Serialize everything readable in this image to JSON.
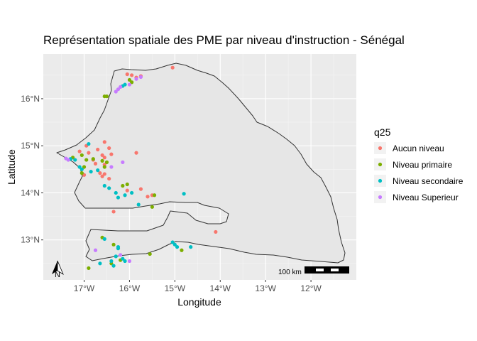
{
  "title": "Représentation spatiale des PME par niveau d'instruction - Sénégal",
  "axes": {
    "x_label": "Longitude",
    "y_label": "Latitude",
    "x_ticks": [
      "17°W",
      "16°W",
      "15°W",
      "14°W",
      "13°W",
      "12°W"
    ],
    "y_ticks": [
      "13°N",
      "14°N",
      "15°N",
      "16°N"
    ],
    "xlim": [
      -17.9,
      -11.0
    ],
    "ylim": [
      12.15,
      16.95
    ]
  },
  "legend": {
    "title": "q25",
    "placement": "right",
    "items": [
      {
        "label": "Aucun niveau",
        "color": "#F8766D"
      },
      {
        "label": "Niveau primaire",
        "color": "#7CAE00"
      },
      {
        "label": "Niveau secondaire",
        "color": "#00BFC4"
      },
      {
        "label": "Niveau Superieur",
        "color": "#C77CFF"
      }
    ]
  },
  "scale_bar": {
    "label": "100 km"
  },
  "north_arrow": {
    "label": "N"
  },
  "chart_data": {
    "type": "scatter",
    "title": "Représentation spatiale des PME par niveau d'instruction - Sénégal",
    "xlabel": "Longitude",
    "ylabel": "Latitude",
    "xlim": [
      -17.9,
      -11.0
    ],
    "ylim": [
      12.15,
      16.95
    ],
    "grid": true,
    "legend_placement": "right",
    "series": [
      {
        "name": "Aucun niveau",
        "color": "#F8766D",
        "points": [
          [
            -16.05,
            16.52
          ],
          [
            -15.95,
            16.5
          ],
          [
            -15.85,
            16.45
          ],
          [
            -15.75,
            16.48
          ],
          [
            -15.05,
            16.66
          ],
          [
            -16.55,
            15.08
          ],
          [
            -16.45,
            14.95
          ],
          [
            -16.6,
            14.8
          ],
          [
            -16.55,
            14.75
          ],
          [
            -16.4,
            14.82
          ],
          [
            -16.7,
            14.92
          ],
          [
            -16.95,
            15.0
          ],
          [
            -17.1,
            14.88
          ],
          [
            -16.9,
            14.85
          ],
          [
            -16.75,
            14.62
          ],
          [
            -16.55,
            14.6
          ],
          [
            -16.8,
            14.7
          ],
          [
            -16.65,
            14.42
          ],
          [
            -16.6,
            14.35
          ],
          [
            -16.45,
            14.3
          ],
          [
            -15.85,
            14.85
          ],
          [
            -15.75,
            14.08
          ],
          [
            -15.6,
            13.92
          ],
          [
            -15.5,
            13.95
          ],
          [
            -16.05,
            14.05
          ],
          [
            -16.35,
            13.6
          ],
          [
            -14.1,
            13.17
          ],
          [
            -17.0,
            14.38
          ],
          [
            -16.55,
            14.4
          ]
        ]
      },
      {
        "name": "Niveau primaire",
        "color": "#7CAE00",
        "points": [
          [
            -16.0,
            16.4
          ],
          [
            -15.95,
            16.35
          ],
          [
            -16.55,
            16.05
          ],
          [
            -16.5,
            16.05
          ],
          [
            -17.25,
            14.75
          ],
          [
            -17.05,
            14.8
          ],
          [
            -16.95,
            14.7
          ],
          [
            -17.0,
            14.55
          ],
          [
            -16.8,
            14.72
          ],
          [
            -16.6,
            14.68
          ],
          [
            -16.5,
            14.65
          ],
          [
            -16.55,
            14.55
          ],
          [
            -16.15,
            14.15
          ],
          [
            -16.05,
            14.18
          ],
          [
            -15.45,
            13.95
          ],
          [
            -15.5,
            13.7
          ],
          [
            -16.35,
            12.9
          ],
          [
            -16.2,
            12.57
          ],
          [
            -16.6,
            13.05
          ],
          [
            -15.55,
            12.7
          ],
          [
            -14.85,
            12.78
          ],
          [
            -16.9,
            12.4
          ],
          [
            -16.4,
            12.5
          ],
          [
            -17.05,
            14.42
          ]
        ]
      },
      {
        "name": "Niveau secondaire",
        "color": "#00BFC4",
        "points": [
          [
            -16.1,
            16.3
          ],
          [
            -16.15,
            16.27
          ],
          [
            -16.9,
            15.04
          ],
          [
            -17.1,
            14.55
          ],
          [
            -17.05,
            14.5
          ],
          [
            -16.85,
            14.45
          ],
          [
            -16.7,
            14.48
          ],
          [
            -17.2,
            14.7
          ],
          [
            -17.3,
            14.72
          ],
          [
            -16.55,
            14.15
          ],
          [
            -16.45,
            14.1
          ],
          [
            -16.3,
            14.0
          ],
          [
            -16.25,
            13.9
          ],
          [
            -16.1,
            13.95
          ],
          [
            -15.95,
            14.0
          ],
          [
            -15.8,
            13.75
          ],
          [
            -14.8,
            13.98
          ],
          [
            -15.05,
            12.95
          ],
          [
            -15.0,
            12.9
          ],
          [
            -14.95,
            12.85
          ],
          [
            -14.65,
            12.85
          ],
          [
            -16.25,
            12.85
          ],
          [
            -16.25,
            12.82
          ],
          [
            -16.15,
            12.6
          ],
          [
            -16.4,
            12.55
          ],
          [
            -16.55,
            13.02
          ],
          [
            -16.65,
            12.5
          ],
          [
            -16.1,
            12.55
          ],
          [
            -16.35,
            12.45
          ],
          [
            -16.3,
            12.65
          ]
        ]
      },
      {
        "name": "Niveau Superieur",
        "color": "#C77CFF",
        "points": [
          [
            -16.25,
            16.2
          ],
          [
            -16.3,
            16.15
          ],
          [
            -16.2,
            16.25
          ],
          [
            -16.0,
            16.3
          ],
          [
            -15.85,
            16.42
          ],
          [
            -15.75,
            16.46
          ],
          [
            -17.4,
            14.73
          ],
          [
            -17.35,
            14.7
          ],
          [
            -16.15,
            14.65
          ],
          [
            -16.4,
            14.55
          ],
          [
            -16.2,
            12.68
          ],
          [
            -16.0,
            12.55
          ],
          [
            -16.75,
            12.78
          ]
        ]
      }
    ]
  }
}
